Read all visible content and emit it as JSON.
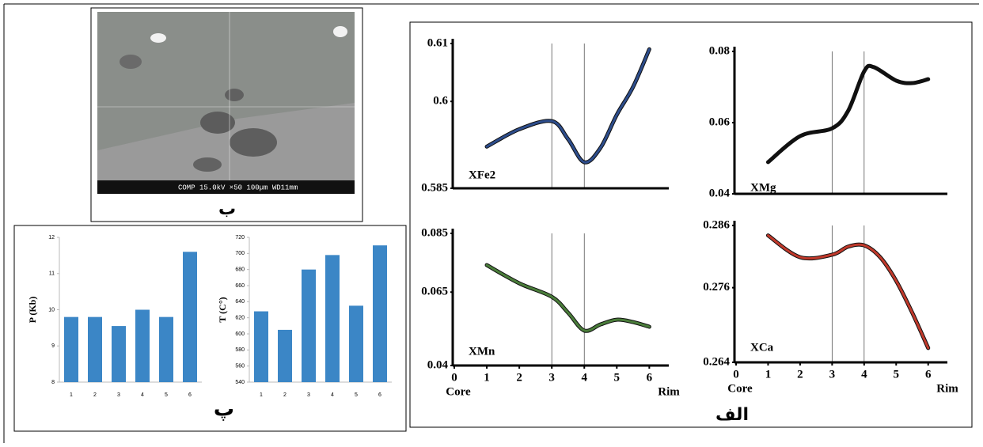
{
  "figure": {
    "sem_label": "ب",
    "bars_label": "پ",
    "profiles_label": "الف",
    "sem_caption": "COMP   15.0kV      ×50   100µm  WD11mm"
  },
  "chart_data": [
    {
      "type": "bar",
      "ylabel": "P (Kb)",
      "categories": [
        "1",
        "2",
        "3",
        "4",
        "5",
        "6"
      ],
      "values": [
        9.8,
        9.8,
        9.55,
        10,
        9.8,
        11.6
      ],
      "color": "#3b86c6",
      "ylim": [
        8,
        12
      ],
      "yticks": [
        8,
        9,
        10,
        11,
        12
      ]
    },
    {
      "type": "bar",
      "ylabel": "T (C°)",
      "categories": [
        "1",
        "2",
        "3",
        "4",
        "5",
        "6"
      ],
      "values": [
        628,
        605,
        680,
        698,
        635,
        710
      ],
      "color": "#3b86c6",
      "ylim": [
        540,
        720
      ],
      "yticks": [
        540,
        560,
        580,
        600,
        620,
        640,
        660,
        680,
        700,
        720
      ]
    },
    {
      "type": "line",
      "x": [
        1,
        2,
        3,
        3.5,
        4,
        4.5,
        5,
        5.5,
        6
      ],
      "series": [
        {
          "name": "XFe2",
          "color": "#2d4d8c",
          "values": [
            0.5922,
            0.5952,
            0.5966,
            0.5935,
            0.5895,
            0.592,
            0.5977,
            0.6025,
            0.609
          ]
        }
      ],
      "xlim": [
        0,
        6.6
      ],
      "ylim": [
        0.585,
        0.61
      ],
      "yticks": [
        0.585,
        0.6,
        0.61
      ],
      "vlines": [
        3,
        4
      ]
    },
    {
      "type": "line",
      "x": [
        1,
        2,
        3,
        3.5,
        4,
        4.3,
        5,
        5.5,
        6
      ],
      "series": [
        {
          "name": "XMg",
          "color": "#111111",
          "values": [
            0.0489,
            0.0562,
            0.0584,
            0.0633,
            0.0744,
            0.0756,
            0.0718,
            0.0711,
            0.0722
          ]
        }
      ],
      "xlim": [
        0,
        6.6
      ],
      "ylim": [
        0.04,
        0.08
      ],
      "yticks": [
        0.04,
        0.06,
        0.08
      ],
      "vlines": [
        3,
        4
      ]
    },
    {
      "type": "line",
      "x": [
        1,
        2,
        3,
        3.5,
        4,
        4.5,
        5,
        5.5,
        6
      ],
      "series": [
        {
          "name": "XMn",
          "color": "#4a7d3a",
          "values": [
            0.0742,
            0.068,
            0.0634,
            0.058,
            0.0519,
            0.054,
            0.0556,
            0.0548,
            0.0532
          ]
        }
      ],
      "xlim": [
        0,
        6.6
      ],
      "ylim": [
        0.04,
        0.085
      ],
      "yticks": [
        0.04,
        0.065,
        0.085
      ],
      "xticks": [
        0,
        1,
        2,
        3,
        4,
        5,
        6
      ],
      "xlabel_start": "Core",
      "xlabel_end": "Rim",
      "vlines": [
        3,
        4
      ]
    },
    {
      "type": "line",
      "x": [
        1,
        2,
        3,
        3.5,
        4,
        4.5,
        5,
        5.5,
        6
      ],
      "series": [
        {
          "name": "XCa",
          "color": "#c0392b",
          "values": [
            0.2844,
            0.2809,
            0.2813,
            0.2826,
            0.2828,
            0.2809,
            0.2771,
            0.272,
            0.2663
          ]
        }
      ],
      "xlim": [
        0,
        6.6
      ],
      "ylim": [
        0.264,
        0.286
      ],
      "yticks": [
        0.264,
        0.276,
        0.286
      ],
      "xticks": [
        0,
        1,
        2,
        3,
        4,
        5,
        6
      ],
      "xlabel_start": "Core",
      "xlabel_end": "Rim",
      "vlines": [
        3,
        4
      ]
    }
  ]
}
